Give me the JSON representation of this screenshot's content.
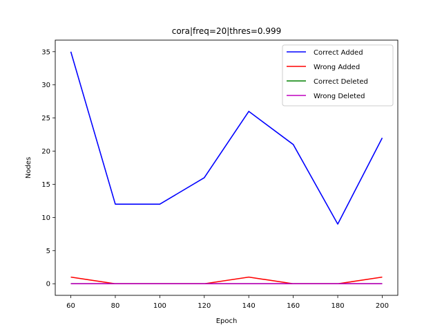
{
  "chart_data": {
    "type": "line",
    "title": "cora|freq=20|thres=0.999",
    "xlabel": "Epoch",
    "ylabel": "Nodes",
    "x": [
      60,
      80,
      100,
      120,
      140,
      160,
      180,
      200
    ],
    "xticks": [
      "60",
      "80",
      "100",
      "120",
      "140",
      "160",
      "180",
      "200"
    ],
    "yticks": [
      "0",
      "5",
      "10",
      "15",
      "20",
      "25",
      "30",
      "35"
    ],
    "xlim": [
      53,
      207
    ],
    "ylim": [
      -1.75,
      36.75
    ],
    "grid": false,
    "legend_position": "top-right",
    "series": [
      {
        "name": "Correct Added",
        "color": "#0000ff",
        "values": [
          35,
          12,
          12,
          16,
          26,
          21,
          9,
          22
        ]
      },
      {
        "name": "Wrong Added",
        "color": "#ff0000",
        "values": [
          1,
          0,
          0,
          0,
          1,
          0,
          0,
          1
        ]
      },
      {
        "name": "Correct Deleted",
        "color": "#008000",
        "values": [
          0,
          0,
          0,
          0,
          0,
          0,
          0,
          0
        ]
      },
      {
        "name": "Wrong Deleted",
        "color": "#bf00bf",
        "values": [
          0,
          0,
          0,
          0,
          0,
          0,
          0,
          0
        ]
      }
    ]
  }
}
